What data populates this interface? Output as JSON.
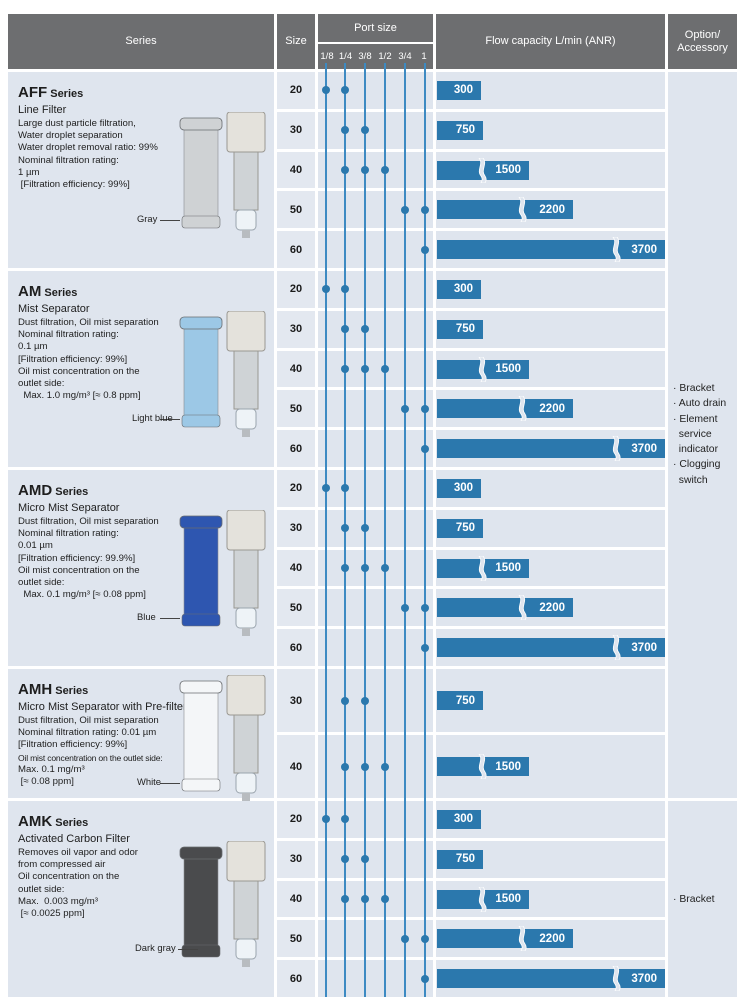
{
  "headers": {
    "series": "Series",
    "size": "Size",
    "port_size": "Port size",
    "flow": "Flow capacity L/min (ANR)",
    "option": "Option/\nAccessory"
  },
  "port_sizes": [
    "1/8",
    "1/4",
    "3/8",
    "1/2",
    "3/4",
    "1"
  ],
  "products": [
    {
      "name": "AFF",
      "series_word": "Series",
      "subtitle": "Line Filter",
      "desc": [
        "Large dust particle filtration,",
        "Water droplet separation",
        "Water droplet removal ratio: 99%",
        "Nominal filtration rating:",
        "1 µm",
        " [Filtration efficiency: 99%]"
      ],
      "element_color": "Gray",
      "element_hex": "#cfd2d4",
      "rows": [
        {
          "size": "20",
          "ports": [
            0,
            1
          ],
          "flow": "300"
        },
        {
          "size": "30",
          "ports": [
            1,
            2
          ],
          "flow": "750"
        },
        {
          "size": "40",
          "ports": [
            1,
            2,
            3
          ],
          "flow": "1500"
        },
        {
          "size": "50",
          "ports": [
            4,
            5
          ],
          "flow": "2200"
        },
        {
          "size": "60",
          "ports": [
            5
          ],
          "flow": "3700"
        }
      ]
    },
    {
      "name": "AM",
      "series_word": "Series",
      "subtitle": "Mist Separator",
      "desc": [
        "Dust filtration, Oil mist separation",
        "Nominal filtration rating:",
        "0.1 µm",
        "[Filtration efficiency: 99%]",
        "Oil mist concentration on the",
        "outlet side:",
        "  Max. 1.0 mg/m³ [≈ 0.8 ppm]"
      ],
      "element_color": "Light blue",
      "element_hex": "#9cc8e6",
      "rows": [
        {
          "size": "20",
          "ports": [
            0,
            1
          ],
          "flow": "300"
        },
        {
          "size": "30",
          "ports": [
            1,
            2
          ],
          "flow": "750"
        },
        {
          "size": "40",
          "ports": [
            1,
            2,
            3
          ],
          "flow": "1500"
        },
        {
          "size": "50",
          "ports": [
            4,
            5
          ],
          "flow": "2200"
        },
        {
          "size": "60",
          "ports": [
            5
          ],
          "flow": "3700"
        }
      ]
    },
    {
      "name": "AMD",
      "series_word": "Series",
      "subtitle": "Micro Mist Separator",
      "desc": [
        "Dust filtration, Oil mist separation",
        "Nominal filtration rating:",
        "0.01 µm",
        "[Filtration efficiency: 99.9%]",
        "Oil mist concentration on the",
        "outlet side:",
        "  Max. 0.1 mg/m³ [≈ 0.08 ppm]"
      ],
      "element_color": "Blue",
      "element_hex": "#2e56b0",
      "rows": [
        {
          "size": "20",
          "ports": [
            0,
            1
          ],
          "flow": "300"
        },
        {
          "size": "30",
          "ports": [
            1,
            2
          ],
          "flow": "750"
        },
        {
          "size": "40",
          "ports": [
            1,
            2,
            3
          ],
          "flow": "1500"
        },
        {
          "size": "50",
          "ports": [
            4,
            5
          ],
          "flow": "2200"
        },
        {
          "size": "60",
          "ports": [
            5
          ],
          "flow": "3700"
        }
      ]
    },
    {
      "name": "AMH",
      "series_word": "Series",
      "subtitle": "Micro Mist Separator with Pre-filter",
      "desc": [
        "Dust filtration, Oil mist separation",
        "Nominal filtration rating: 0.01 µm",
        "[Filtration efficiency: 99%]",
        "Oil mist concentration on the outlet side:",
        "Max. 0.1 mg/m³",
        " [≈ 0.08 ppm]"
      ],
      "element_color": "White",
      "element_hex": "#f4f6f8",
      "rows": [
        {
          "size": "30",
          "ports": [
            1,
            2
          ],
          "flow": "750"
        },
        {
          "size": "40",
          "ports": [
            1,
            2,
            3
          ],
          "flow": "1500"
        }
      ]
    },
    {
      "name": "AMK",
      "series_word": "Series",
      "subtitle": "Activated Carbon Filter",
      "desc": [
        "Removes oil vapor and odor",
        "from compressed air",
        "Oil concentration on the",
        "outlet side:",
        "Max.  0.003 mg/m³",
        " [≈ 0.0025 ppm]"
      ],
      "element_color": "Dark gray",
      "element_hex": "#4a4b4d",
      "rows": [
        {
          "size": "20",
          "ports": [
            0,
            1
          ],
          "flow": "300"
        },
        {
          "size": "30",
          "ports": [
            1,
            2
          ],
          "flow": "750"
        },
        {
          "size": "40",
          "ports": [
            1,
            2,
            3
          ],
          "flow": "1500"
        },
        {
          "size": "50",
          "ports": [
            4,
            5
          ],
          "flow": "2200"
        },
        {
          "size": "60",
          "ports": [
            5
          ],
          "flow": "3700"
        }
      ]
    }
  ],
  "options_main": [
    "· Bracket",
    "· Auto drain",
    "· Element",
    "  service",
    "  indicator",
    "· Clogging",
    "  switch"
  ],
  "options_amk": [
    "· Bracket"
  ],
  "colors": {
    "header": "#6d6e70",
    "bar": "#2b78ad",
    "line": "#3d8ac2",
    "cell": "#dfe5ee"
  }
}
